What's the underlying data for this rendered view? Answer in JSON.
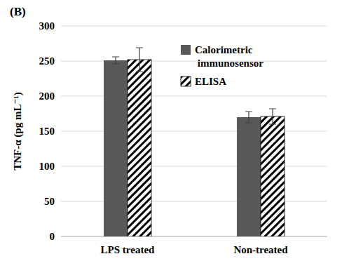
{
  "chart_data": {
    "type": "bar",
    "title": "(B)",
    "y_label": "TNF-α (pg mL⁻¹)",
    "categories": [
      "LPS treated",
      "Non-treated"
    ],
    "series": [
      {
        "name": "Calorimetric immunosensor",
        "color": "#595959",
        "values": [
          251,
          170
        ],
        "errors": [
          5,
          8
        ]
      },
      {
        "name": "ELISA",
        "color": "#000000",
        "values": [
          252,
          171
        ],
        "errors": [
          17,
          11
        ]
      }
    ],
    "ylim": [
      0,
      300
    ],
    "yticks": [
      0,
      50,
      100,
      150,
      200,
      250,
      300
    ],
    "grid": true,
    "legend": "top-right"
  }
}
